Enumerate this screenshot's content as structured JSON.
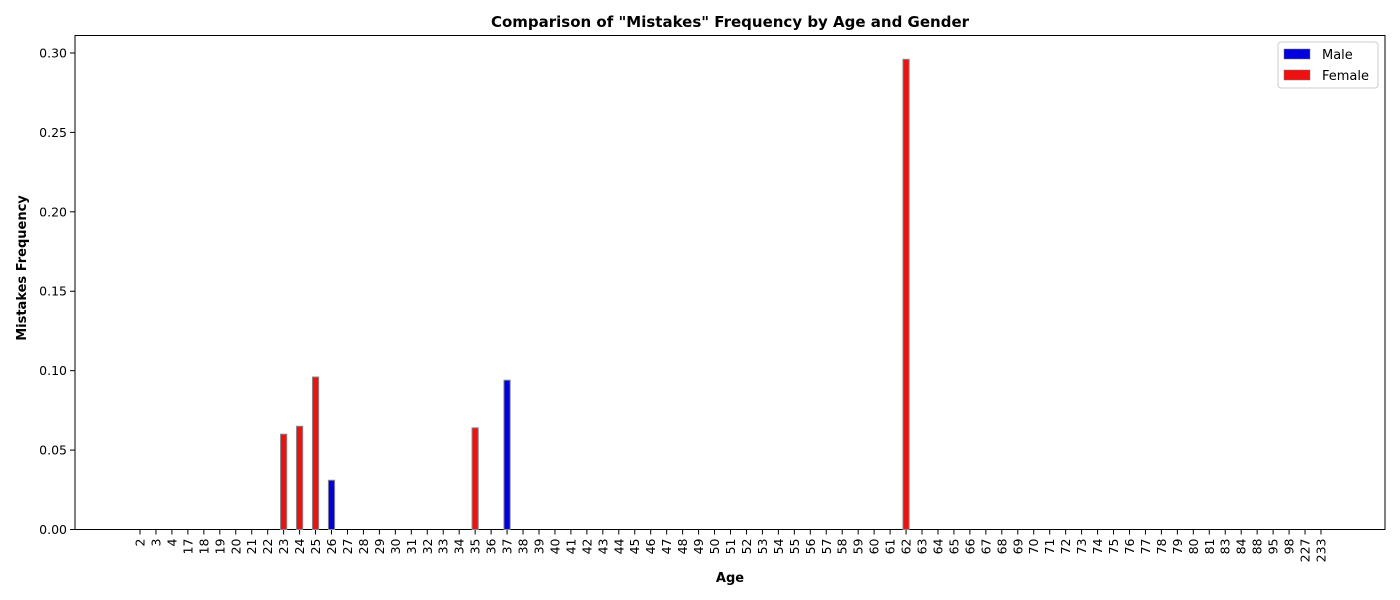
{
  "chart_data": {
    "type": "bar",
    "title": "Comparison of \"Mistakes\" Frequency by Age and Gender",
    "xlabel": "Age",
    "ylabel": "Mistakes Frequency",
    "ylim": [
      0,
      0.311
    ],
    "yticks": [
      "0.00",
      "0.05",
      "0.10",
      "0.15",
      "0.20",
      "0.25",
      "0.30"
    ],
    "categories": [
      "2",
      "3",
      "4",
      "17",
      "18",
      "19",
      "20",
      "21",
      "22",
      "23",
      "24",
      "25",
      "26",
      "27",
      "28",
      "29",
      "30",
      "31",
      "32",
      "33",
      "34",
      "35",
      "36",
      "37",
      "38",
      "39",
      "40",
      "41",
      "42",
      "43",
      "44",
      "45",
      "46",
      "47",
      "48",
      "49",
      "50",
      "51",
      "52",
      "53",
      "54",
      "55",
      "56",
      "57",
      "58",
      "59",
      "60",
      "61",
      "62",
      "63",
      "64",
      "65",
      "66",
      "67",
      "68",
      "69",
      "70",
      "71",
      "72",
      "73",
      "74",
      "75",
      "76",
      "77",
      "78",
      "79",
      "80",
      "81",
      "83",
      "84",
      "88",
      "95",
      "98",
      "227",
      "233"
    ],
    "series": [
      {
        "name": "Male",
        "color": "#0000dd",
        "values": [
          0,
          0,
          0,
          0,
          0,
          0,
          0,
          0,
          0,
          0,
          0,
          0,
          0.031,
          0,
          0,
          0,
          0,
          0,
          0,
          0,
          0,
          0,
          0,
          0.094,
          0,
          0,
          0,
          0,
          0,
          0,
          0,
          0,
          0,
          0,
          0,
          0,
          0,
          0,
          0,
          0,
          0,
          0,
          0,
          0,
          0,
          0,
          0,
          0,
          0,
          0,
          0,
          0,
          0,
          0,
          0,
          0,
          0,
          0,
          0,
          0,
          0,
          0,
          0,
          0,
          0,
          0,
          0,
          0,
          0,
          0,
          0,
          0,
          0,
          0,
          0
        ]
      },
      {
        "name": "Female",
        "color": "#ee1111",
        "values": [
          0,
          0,
          0,
          0,
          0,
          0,
          0,
          0,
          0,
          0.06,
          0.065,
          0.096,
          0,
          0,
          0,
          0,
          0,
          0,
          0,
          0,
          0,
          0.064,
          0,
          0,
          0,
          0,
          0,
          0,
          0,
          0,
          0,
          0,
          0,
          0,
          0,
          0,
          0,
          0,
          0,
          0,
          0,
          0,
          0,
          0,
          0,
          0,
          0,
          0,
          0.296,
          0,
          0,
          0,
          0,
          0,
          0,
          0,
          0,
          0,
          0,
          0,
          0,
          0,
          0,
          0,
          0,
          0,
          0,
          0,
          0,
          0,
          0,
          0,
          0,
          0,
          0
        ]
      }
    ],
    "grid": false,
    "legend_position": "top-right"
  }
}
